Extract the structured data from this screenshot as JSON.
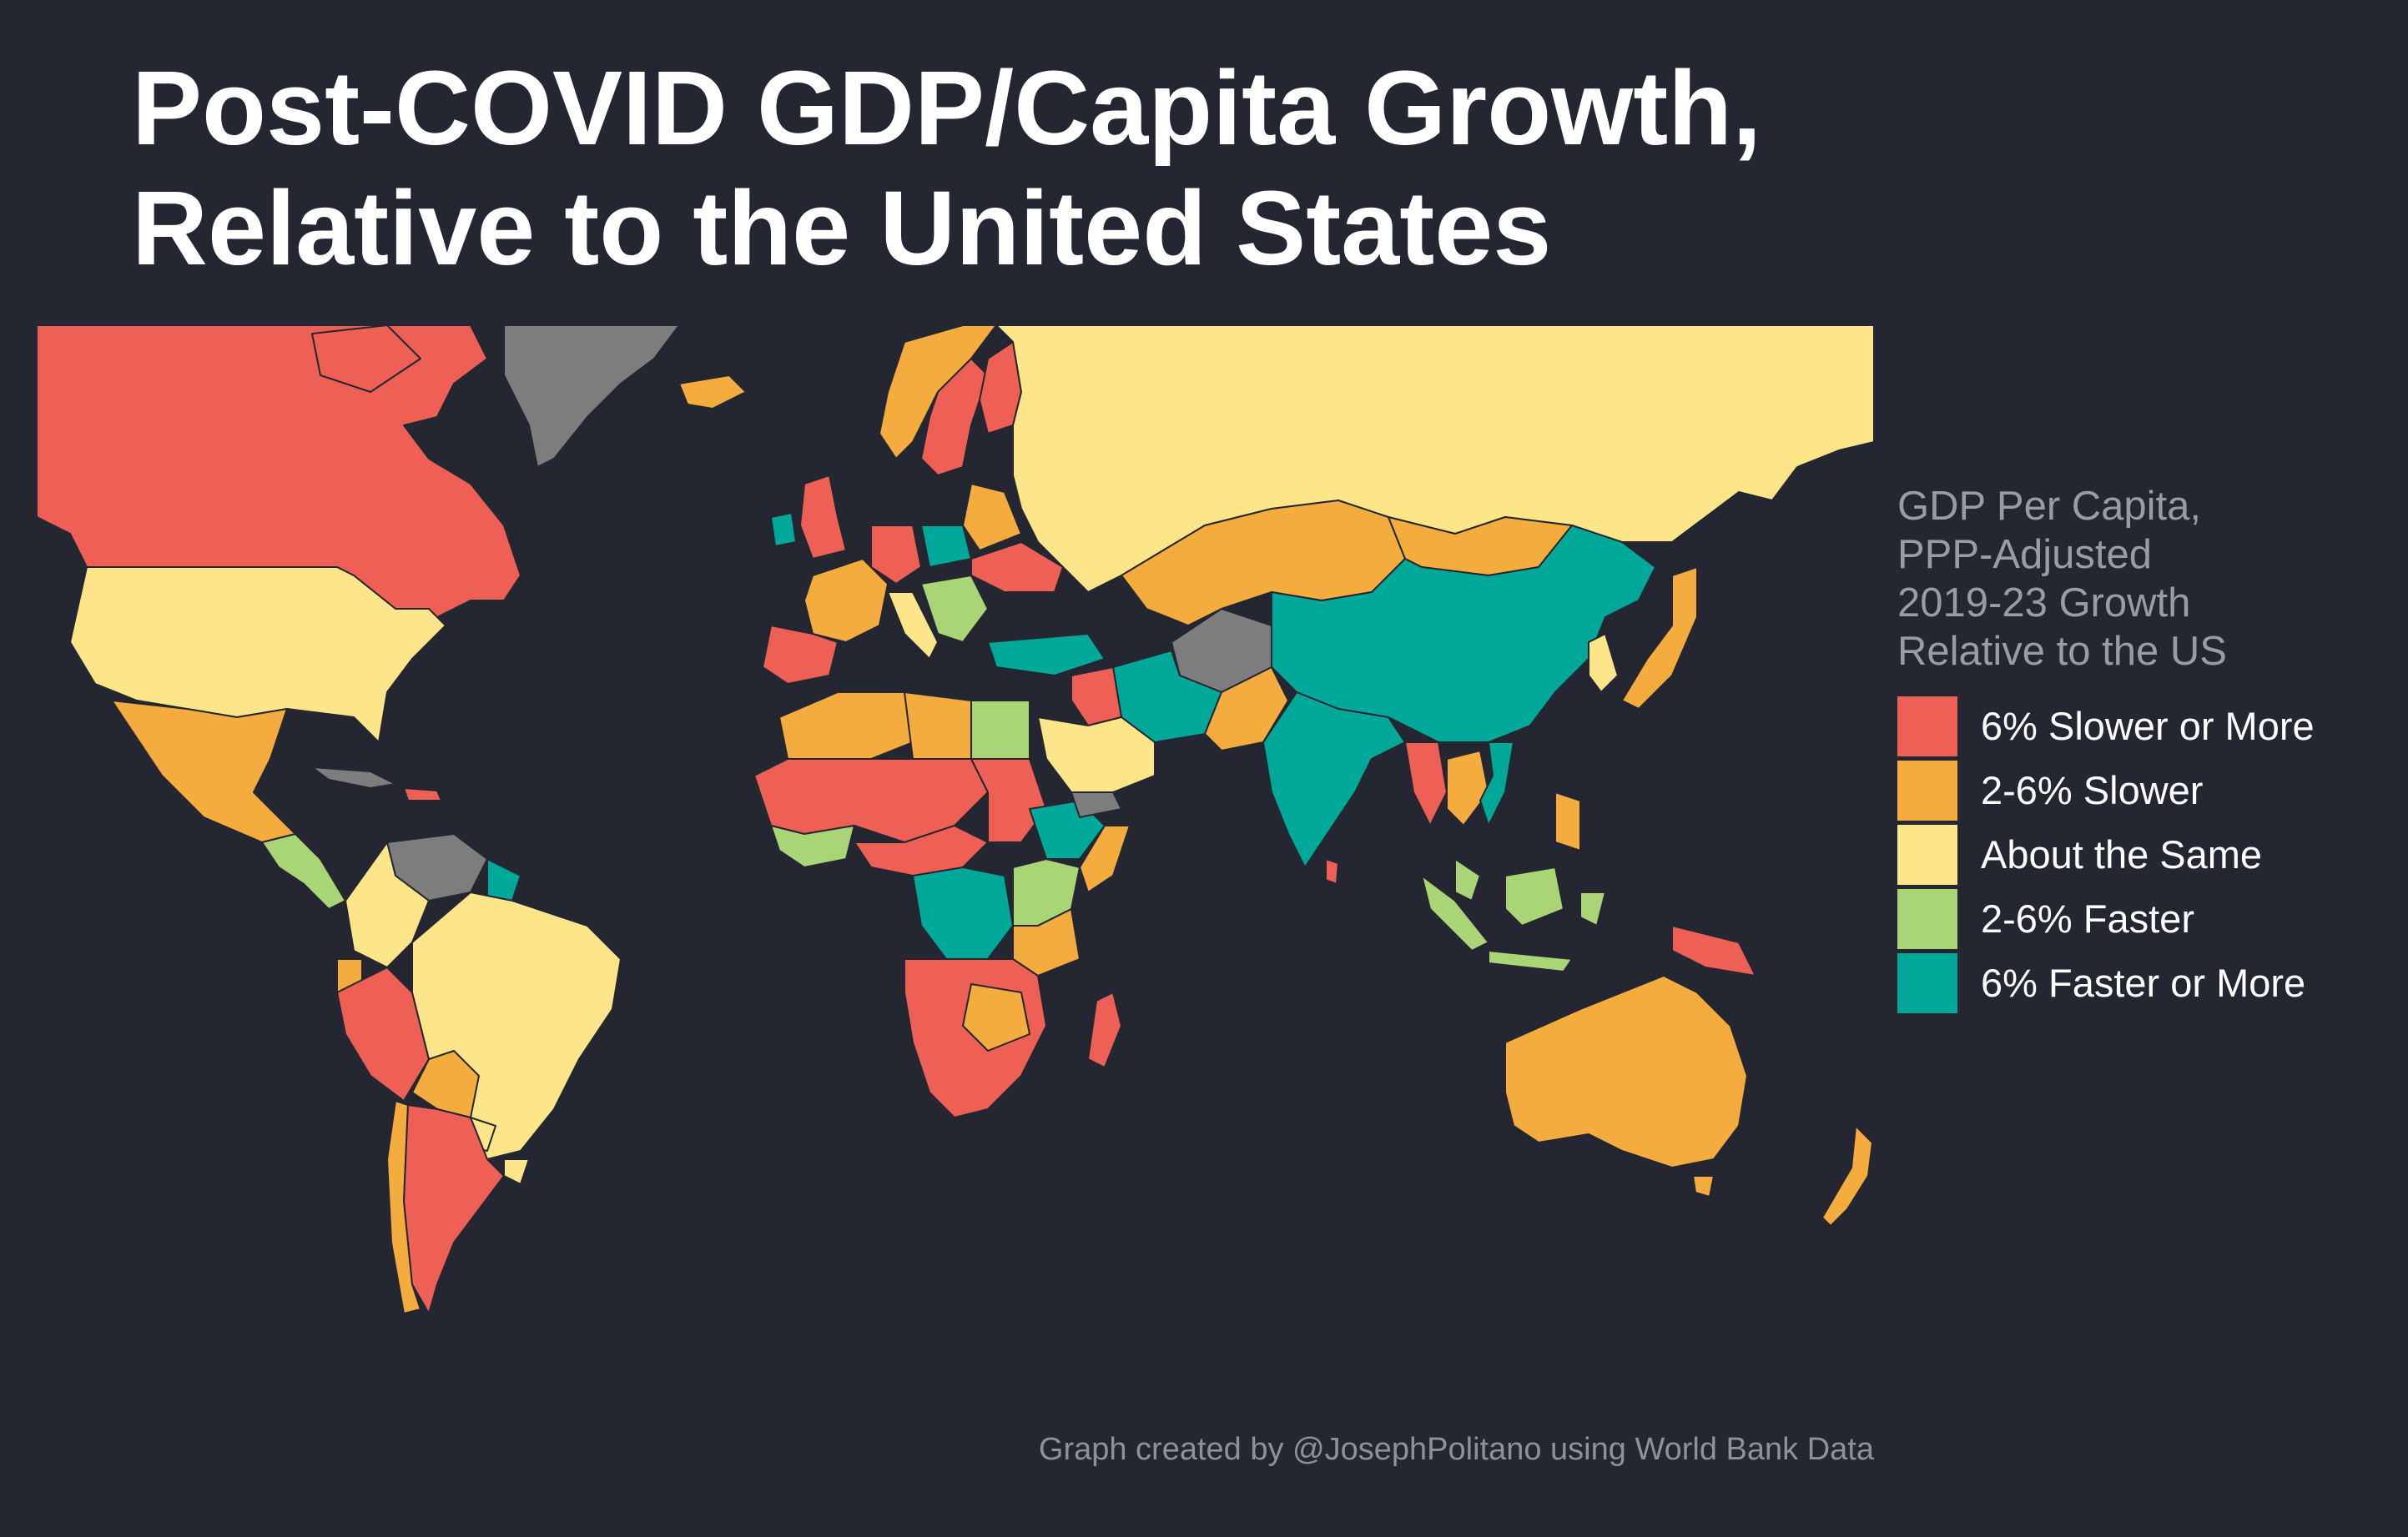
{
  "title": {
    "line1": "Post-COVID GDP/Capita Growth,",
    "line2": "Relative to the United States"
  },
  "legend": {
    "title_lines": [
      "GDP Per Capita,",
      "PPP-Adjusted",
      "2019-23 Growth",
      "Relative to the US"
    ],
    "items": [
      {
        "label": "6% Slower or More",
        "color": "#ee6055"
      },
      {
        "label": "2-6% Slower",
        "color": "#f4ac3e"
      },
      {
        "label": "About the Same",
        "color": "#fde68a"
      },
      {
        "label": "2-6% Faster",
        "color": "#aad576"
      },
      {
        "label": "6% Faster or More",
        "color": "#00a89a"
      }
    ],
    "no_data_color": "#7d7d7d"
  },
  "source": "Graph created by @JosephPolitano using World Bank Data",
  "map_data": {
    "type": "choropleth",
    "projection": "world (lon/lat)",
    "regions": [
      {
        "region": "Canada",
        "category": "6% Slower or More"
      },
      {
        "region": "United States",
        "category": "About the Same"
      },
      {
        "region": "Mexico",
        "category": "2-6% Slower"
      },
      {
        "region": "Greenland",
        "category": "no data"
      },
      {
        "region": "Brazil",
        "category": "About the Same"
      },
      {
        "region": "Argentina",
        "category": "6% Slower or More"
      },
      {
        "region": "Venezuela",
        "category": "no data"
      },
      {
        "region": "Russia",
        "category": "About the Same"
      },
      {
        "region": "China",
        "category": "6% Faster or More"
      },
      {
        "region": "India",
        "category": "6% Faster or More"
      },
      {
        "region": "Kazakhstan",
        "category": "2-6% Slower"
      },
      {
        "region": "Mongolia",
        "category": "2-6% Slower"
      },
      {
        "region": "Australia",
        "category": "2-6% Slower"
      },
      {
        "region": "Saudi Arabia",
        "category": "About the Same"
      },
      {
        "region": "Egypt",
        "category": "2-6% Faster"
      },
      {
        "region": "DR Congo",
        "category": "6% Faster or More"
      },
      {
        "region": "Indonesia",
        "category": "2-6% Faster"
      },
      {
        "region": "Japan",
        "category": "2-6% Slower"
      }
    ]
  }
}
